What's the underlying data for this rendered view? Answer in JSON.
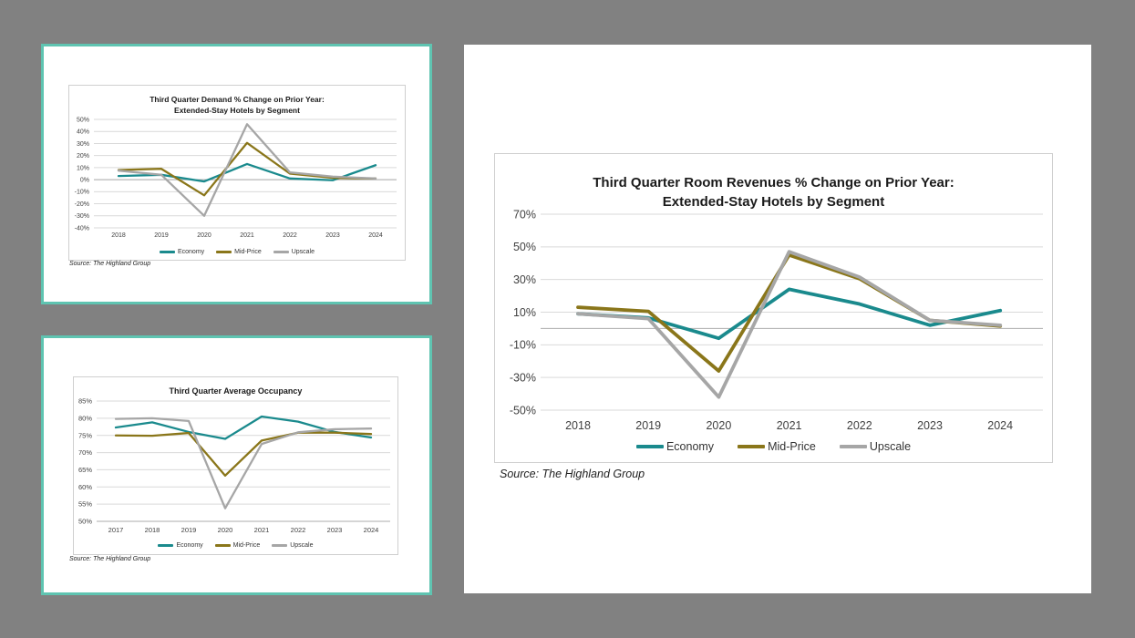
{
  "page": {
    "background_color": "#818181",
    "card_border_color": "#5fc4b1",
    "panel_background": "#ffffff"
  },
  "chart_data": [
    {
      "id": "demand",
      "type": "line",
      "title_line1": "Third Quarter Demand % Change on Prior Year:",
      "title_line2": "Extended-Stay Hotels by Segment",
      "source": "Source: The Highland Group",
      "categories": [
        "2018",
        "2019",
        "2020",
        "2021",
        "2022",
        "2023",
        "2024"
      ],
      "ylim": [
        -40,
        50
      ],
      "ytick_step": 10,
      "ytick_labels": [
        "50%",
        "40%",
        "30%",
        "20%",
        "10%",
        "0%",
        "-10%",
        "-20%",
        "-30%",
        "-40%"
      ],
      "grid": true,
      "legend_position": "bottom",
      "series": [
        {
          "name": "Economy",
          "color": "#1a8a8d",
          "values": [
            3,
            4,
            -1.5,
            13,
            1,
            -0.5,
            12
          ]
        },
        {
          "name": "Mid-Price",
          "color": "#8a761a",
          "values": [
            8,
            9,
            -13,
            30.5,
            5,
            1.5,
            1
          ]
        },
        {
          "name": "Upscale",
          "color": "#a6a6a6",
          "values": [
            7.5,
            4,
            -30,
            46,
            6,
            2.5,
            1
          ]
        }
      ]
    },
    {
      "id": "occupancy",
      "type": "line",
      "title_line1": "Third Quarter Average Occupancy",
      "source": "Source: The Highland Group",
      "categories": [
        "2017",
        "2018",
        "2019",
        "2020",
        "2021",
        "2022",
        "2023",
        "2024"
      ],
      "ylim": [
        50,
        85
      ],
      "ytick_step": 5,
      "ytick_labels": [
        "85%",
        "80%",
        "75%",
        "70%",
        "65%",
        "60%",
        "55%",
        "50%"
      ],
      "grid": true,
      "legend_position": "bottom",
      "series": [
        {
          "name": "Economy",
          "color": "#1a8a8d",
          "values": [
            77.3,
            78.8,
            76.0,
            74.0,
            80.5,
            79.0,
            76.0,
            74.4
          ]
        },
        {
          "name": "Mid-Price",
          "color": "#8a761a",
          "values": [
            75.0,
            74.9,
            75.7,
            63.3,
            73.5,
            75.8,
            75.8,
            75.4
          ]
        },
        {
          "name": "Upscale",
          "color": "#a6a6a6",
          "values": [
            79.8,
            80.0,
            79.2,
            53.8,
            72.5,
            75.9,
            76.8,
            77.0
          ]
        }
      ]
    },
    {
      "id": "revenues",
      "type": "line",
      "title_line1": "Third Quarter Room Revenues % Change on Prior Year:",
      "title_line2": "Extended-Stay Hotels by Segment",
      "source": "Source: The Highland Group",
      "categories": [
        "2018",
        "2019",
        "2020",
        "2021",
        "2022",
        "2023",
        "2024"
      ],
      "ylim": [
        -50,
        70
      ],
      "ytick_step": 20,
      "ytick_labels": [
        "70%",
        "50%",
        "30%",
        "10%",
        "-10%",
        "-30%",
        "-50%"
      ],
      "grid": true,
      "legend_position": "bottom",
      "series": [
        {
          "name": "Economy",
          "color": "#1a8a8d",
          "values": [
            9,
            6.5,
            -6,
            24,
            15,
            2,
            11
          ]
        },
        {
          "name": "Mid-Price",
          "color": "#8a761a",
          "values": [
            13,
            10.5,
            -26,
            45,
            30.5,
            5,
            1.5
          ]
        },
        {
          "name": "Upscale",
          "color": "#a6a6a6",
          "values": [
            9,
            6,
            -42,
            47,
            31.5,
            5,
            2
          ]
        }
      ]
    }
  ]
}
